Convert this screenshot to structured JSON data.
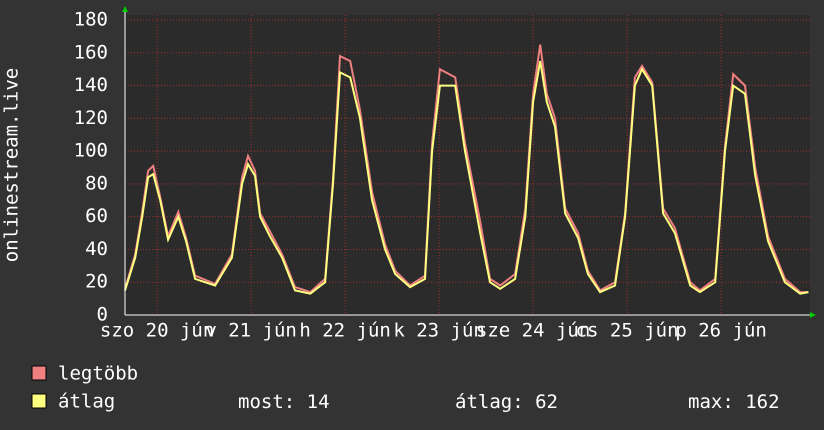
{
  "chart_data": {
    "type": "line",
    "ylabel": "onlinestream.live",
    "xlim": [
      -8.2,
      166.7
    ],
    "xticks": [
      {
        "value": 0,
        "label": "szo 20 jún"
      },
      {
        "value": 24,
        "label": "v 21 jún"
      },
      {
        "value": 48,
        "label": "h 22 jún"
      },
      {
        "value": 72,
        "label": "k 23 jún"
      },
      {
        "value": 96,
        "label": "sze 24 jún"
      },
      {
        "value": 120,
        "label": "cs 25 jún"
      },
      {
        "value": 144,
        "label": "p 26 jún"
      }
    ],
    "ylim": [
      0,
      180
    ],
    "yticks": [
      0,
      20,
      40,
      60,
      80,
      100,
      120,
      140,
      160,
      180
    ],
    "grid": true,
    "x": [
      -8.2,
      -5.6,
      -3.8,
      -2.3,
      -1.0,
      0.8,
      2.8,
      5.4,
      7.4,
      9.7,
      14.8,
      19.1,
      21.7,
      23.2,
      25.0,
      26.3,
      28.8,
      31.9,
      35.2,
      39.1,
      42.9,
      44.9,
      46.7,
      49.3,
      51.8,
      54.9,
      58.2,
      60.8,
      64.6,
      68.4,
      70.2,
      72.2,
      76.1,
      78.6,
      82.5,
      85.0,
      87.6,
      91.4,
      94.0,
      96.0,
      97.8,
      99.5,
      101.6,
      104.2,
      107.5,
      110.0,
      113.1,
      116.9,
      119.5,
      122.0,
      123.8,
      126.4,
      129.2,
      132.2,
      136.1,
      138.6,
      142.5,
      145.0,
      147.1,
      150.1,
      152.7,
      156.0,
      160.3,
      164.2,
      166.3
    ],
    "series": [
      {
        "name": "legtöbb",
        "color": "#f08080",
        "values": [
          16,
          37,
          63,
          88,
          91,
          72,
          48,
          63,
          47,
          24,
          19,
          37,
          84,
          97,
          88,
          62,
          51,
          37,
          17,
          14,
          22,
          83,
          158,
          155,
          125,
          75,
          43,
          27,
          18,
          24,
          105,
          150,
          145,
          105,
          57,
          22,
          18,
          25,
          65,
          135,
          165,
          135,
          120,
          65,
          50,
          27,
          15,
          20,
          62,
          145,
          152,
          142,
          65,
          53,
          20,
          15,
          22,
          103,
          147,
          140,
          90,
          48,
          22,
          14,
          14
        ]
      },
      {
        "name": "átlag",
        "color": "#ffff80",
        "values": [
          15,
          35,
          60,
          84,
          86,
          70,
          46,
          60,
          45,
          22,
          18,
          35,
          80,
          92,
          85,
          60,
          48,
          35,
          15,
          13,
          20,
          80,
          148,
          145,
          120,
          70,
          40,
          25,
          17,
          22,
          100,
          140,
          140,
          100,
          50,
          20,
          16,
          22,
          60,
          130,
          155,
          130,
          115,
          62,
          47,
          25,
          14,
          18,
          60,
          140,
          150,
          140,
          62,
          50,
          18,
          14,
          20,
          100,
          140,
          135,
          85,
          45,
          20,
          13,
          14
        ]
      }
    ],
    "stats": [
      {
        "label": "most:",
        "value": 14
      },
      {
        "label": "átlag:",
        "value": 62
      },
      {
        "label": "max:",
        "value": 162
      }
    ]
  }
}
